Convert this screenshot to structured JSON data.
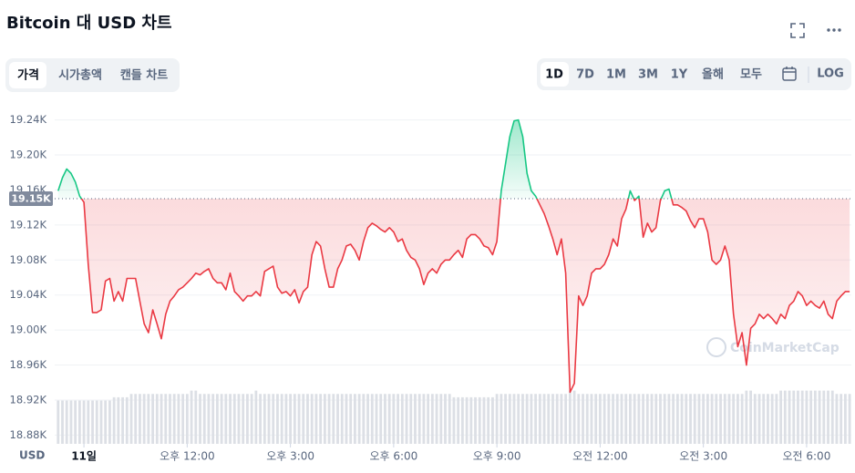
{
  "header": {
    "title": "Bitcoin 대 USD 차트"
  },
  "tabs": [
    "가격",
    "시가총액",
    "캔들 차트"
  ],
  "ranges": [
    "1D",
    "7D",
    "1M",
    "3M",
    "1Y",
    "올해",
    "모두"
  ],
  "log_label": "LOG",
  "chart_data": {
    "type": "line",
    "currency_label": "USD",
    "watermark": "CoinMarketCap",
    "up_color": "#16c784",
    "down_color": "#ea3943",
    "baseline": {
      "value": 19150,
      "label": "19.15K"
    },
    "xlim": [
      -0.85,
      22.3
    ],
    "xticks": [
      {
        "value": 0,
        "label": "11일"
      },
      {
        "value": 3,
        "label": "오후 12:00"
      },
      {
        "value": 6,
        "label": "오후 3:00"
      },
      {
        "value": 9,
        "label": "오후 6:00"
      },
      {
        "value": 12,
        "label": "오후 9:00"
      },
      {
        "value": 15,
        "label": "오전 12:00"
      },
      {
        "value": 18,
        "label": "오전 3:00"
      },
      {
        "value": 21,
        "label": "오전 6:00"
      }
    ],
    "ylim": [
      18870,
      19250
    ],
    "yticks": [
      {
        "value": 18880,
        "label": "18.88K"
      },
      {
        "value": 18920,
        "label": "18.92K"
      },
      {
        "value": 18960,
        "label": "18.96K"
      },
      {
        "value": 19000,
        "label": "19.00K"
      },
      {
        "value": 19040,
        "label": "19.04K"
      },
      {
        "value": 19080,
        "label": "19.08K"
      },
      {
        "value": 19120,
        "label": "19.12K"
      },
      {
        "value": 19160,
        "label": "19.16K"
      },
      {
        "value": 19200,
        "label": "19.20K"
      },
      {
        "value": 19240,
        "label": "19.24K"
      }
    ],
    "grid": true,
    "x": [
      -0.75,
      -0.625,
      -0.5,
      -0.375,
      -0.25,
      -0.125,
      0,
      0.125,
      0.25,
      0.375,
      0.5,
      0.625,
      0.75,
      0.875,
      1,
      1.125,
      1.25,
      1.375,
      1.5,
      1.625,
      1.75,
      1.875,
      2,
      2.125,
      2.25,
      2.375,
      2.5,
      2.625,
      2.75,
      2.875,
      3,
      3.125,
      3.25,
      3.375,
      3.5,
      3.625,
      3.75,
      3.875,
      4,
      4.125,
      4.25,
      4.375,
      4.5,
      4.625,
      4.75,
      4.875,
      5,
      5.125,
      5.25,
      5.375,
      5.5,
      5.625,
      5.75,
      5.875,
      6,
      6.125,
      6.25,
      6.375,
      6.5,
      6.625,
      6.75,
      6.875,
      7,
      7.125,
      7.25,
      7.375,
      7.5,
      7.625,
      7.75,
      7.875,
      8,
      8.125,
      8.25,
      8.375,
      8.5,
      8.625,
      8.75,
      8.875,
      9,
      9.125,
      9.25,
      9.375,
      9.5,
      9.625,
      9.75,
      9.875,
      10,
      10.125,
      10.25,
      10.375,
      10.5,
      10.625,
      10.75,
      10.875,
      11,
      11.125,
      11.25,
      11.375,
      11.5,
      11.625,
      11.75,
      11.875,
      12,
      12.125,
      12.25,
      12.375,
      12.5,
      12.625,
      12.75,
      12.875,
      13,
      13.125,
      13.25,
      13.375,
      13.5,
      13.625,
      13.75,
      13.875,
      14,
      14.125,
      14.25,
      14.375,
      14.5,
      14.625,
      14.75,
      14.875,
      15,
      15.125,
      15.25,
      15.375,
      15.5,
      15.625,
      15.75,
      15.875,
      16,
      16.125,
      16.25,
      16.375,
      16.5,
      16.625,
      16.75,
      16.875,
      17,
      17.125,
      17.25,
      17.375,
      17.5,
      17.625,
      17.75,
      17.875,
      18,
      18.125,
      18.25,
      18.375,
      18.5,
      18.625,
      18.75,
      18.875,
      19,
      19.125,
      19.25,
      19.375,
      19.5,
      19.625,
      19.75,
      19.875,
      20,
      20.125,
      20.25,
      20.375,
      20.5,
      20.625,
      20.75,
      20.875,
      21,
      21.125,
      21.25,
      21.375,
      21.5,
      21.625,
      21.75,
      21.875,
      22,
      22.125,
      22.25
    ],
    "values": [
      19159,
      19174,
      19184,
      19179,
      19169,
      19153,
      19146,
      19075,
      19020,
      19020,
      19023,
      19056,
      19059,
      19033,
      19044,
      19033,
      19059,
      19059,
      19059,
      19033,
      19007,
      18997,
      19023,
      19007,
      18990,
      19018,
      19033,
      19039,
      19046,
      19049,
      19054,
      19059,
      19065,
      19063,
      19067,
      19070,
      19059,
      19054,
      19054,
      19046,
      19065,
      19044,
      19039,
      19033,
      19039,
      19039,
      19044,
      19039,
      19067,
      19070,
      19073,
      19049,
      19042,
      19044,
      19039,
      19046,
      19031,
      19044,
      19049,
      19086,
      19101,
      19096,
      19070,
      19049,
      19049,
      19070,
      19080,
      19096,
      19098,
      19091,
      19080,
      19101,
      19117,
      19122,
      19119,
      19115,
      19112,
      19117,
      19112,
      19101,
      19104,
      19091,
      19083,
      19080,
      19070,
      19052,
      19065,
      19070,
      19065,
      19075,
      19080,
      19080,
      19086,
      19091,
      19083,
      19104,
      19109,
      19109,
      19104,
      19096,
      19094,
      19086,
      19101,
      19159,
      19190,
      19221,
      19239,
      19240,
      19221,
      19179,
      19159,
      19153,
      19143,
      19133,
      19119,
      19104,
      19086,
      19104,
      19065,
      18929,
      18939,
      19039,
      19028,
      19039,
      19065,
      19070,
      19070,
      19075,
      19086,
      19104,
      19096,
      19127,
      19138,
      19159,
      19148,
      19153,
      19106,
      19122,
      19112,
      19117,
      19148,
      19159,
      19161,
      19143,
      19143,
      19140,
      19136,
      19125,
      19117,
      19127,
      19127,
      19112,
      19080,
      19075,
      19080,
      19096,
      19080,
      19018,
      18981,
      18997,
      18960,
      19002,
      19007,
      19018,
      19013,
      19018,
      19013,
      19007,
      19018,
      19013,
      19028,
      19033,
      19044,
      19039,
      19028,
      19033,
      19028,
      19025,
      19033,
      19018,
      19013,
      19033,
      19039,
      19044,
      19044
    ],
    "volume": {
      "color": "#dcdfe5",
      "ylim": [
        0,
        100
      ],
      "values": [
        13,
        13,
        13,
        13,
        13,
        13,
        13,
        13,
        13,
        13,
        13,
        13,
        13,
        14,
        14,
        14,
        14,
        15,
        15,
        15,
        15,
        15,
        15,
        15,
        15,
        15,
        15,
        15,
        15,
        15,
        15,
        16,
        16,
        15,
        15,
        15,
        15,
        15,
        15,
        15,
        15,
        15,
        15,
        15,
        15,
        15,
        16,
        15,
        15,
        15,
        15,
        15,
        15,
        15,
        15,
        15,
        15,
        15,
        15,
        15,
        15,
        15,
        15,
        15,
        15,
        15,
        15,
        15,
        15,
        15,
        15,
        15,
        15,
        15,
        15,
        15,
        15,
        15,
        15,
        15,
        15,
        15,
        15,
        15,
        15,
        15,
        15,
        15,
        15,
        15,
        15,
        15,
        14,
        14,
        14,
        14,
        14,
        14,
        14,
        14,
        14,
        14,
        15,
        15,
        15,
        15,
        15,
        15,
        15,
        15,
        15,
        15,
        15,
        15,
        15,
        15,
        15,
        15,
        15,
        16,
        16,
        15,
        15,
        15,
        15,
        15,
        15,
        15,
        15,
        15,
        15,
        15,
        15,
        15,
        15,
        15,
        15,
        15,
        15,
        15,
        15,
        15,
        15,
        15,
        15,
        15,
        15,
        15,
        15,
        15,
        15,
        15,
        15,
        15,
        15,
        15,
        15,
        15,
        15,
        15,
        16,
        16,
        15,
        15,
        15,
        15,
        15,
        15,
        16,
        16,
        16,
        16,
        16,
        16,
        16,
        16,
        16,
        16,
        16,
        16,
        16,
        15,
        15,
        15,
        15
      ]
    }
  }
}
